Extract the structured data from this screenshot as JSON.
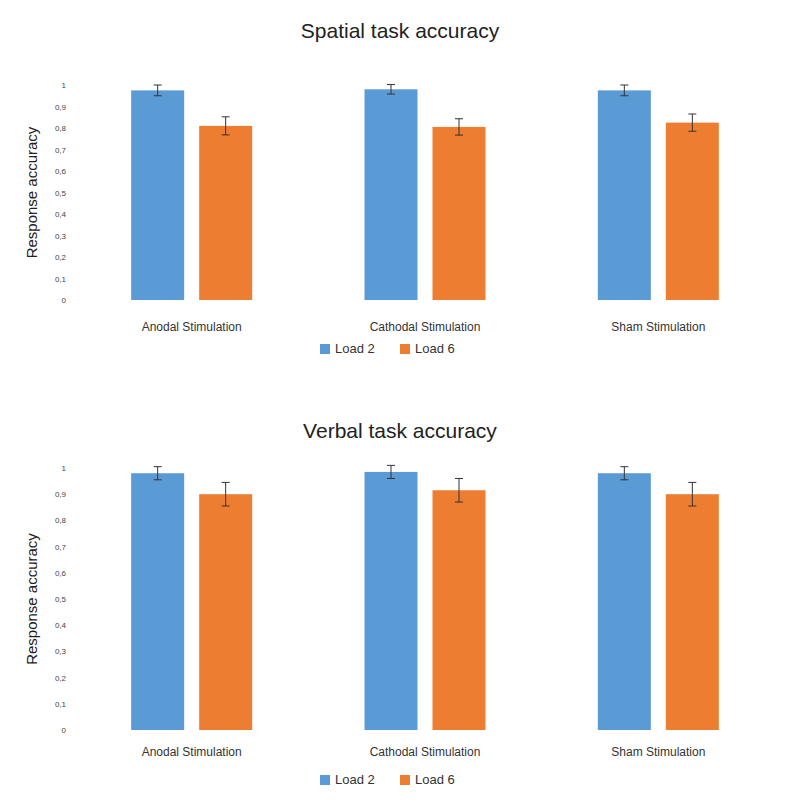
{
  "chart_data": [
    {
      "type": "bar",
      "title": "Spatial task accuracy",
      "y_label": "Response accuracy",
      "categories": [
        "Anodal Stimulation",
        "Cathodal Stimulation",
        "Sham Stimulation"
      ],
      "series": [
        {
          "name": "Load 2",
          "color": "#5b9bd5",
          "values": [
            0.975,
            0.98,
            0.975
          ],
          "errors": [
            0.025,
            0.022,
            0.025
          ]
        },
        {
          "name": "Load 6",
          "color": "#ed7d31",
          "values": [
            0.81,
            0.805,
            0.825
          ],
          "errors": [
            0.042,
            0.038,
            0.04
          ]
        }
      ],
      "ylim": [
        0,
        1
      ],
      "yticks": [
        0,
        {
          "value": 0.1,
          "label": "0,1"
        },
        {
          "value": 0.2,
          "label": "0,2"
        },
        {
          "value": 0.3,
          "label": "0,3"
        },
        {
          "value": 0.4,
          "label": "0,4"
        },
        {
          "value": 0.5,
          "label": "0,5"
        },
        {
          "value": 0.6,
          "label": "0,6"
        },
        {
          "value": 0.7,
          "label": "0,7"
        },
        {
          "value": 0.8,
          "label": "0,8"
        },
        {
          "value": 0.9,
          "label": "0,9"
        },
        1
      ],
      "grid": false,
      "legend": "bottom"
    },
    {
      "type": "bar",
      "title": "Verbal task accuracy",
      "y_label": "Response accuracy",
      "categories": [
        "Anodal Stimulation",
        "Cathodal Stimulation",
        "Sham Stimulation"
      ],
      "series": [
        {
          "name": "Load 2",
          "color": "#5b9bd5",
          "values": [
            0.98,
            0.985,
            0.98
          ],
          "errors": [
            0.025,
            0.025,
            0.025
          ]
        },
        {
          "name": "Load 6",
          "color": "#ed7d31",
          "values": [
            0.9,
            0.915,
            0.9
          ],
          "errors": [
            0.045,
            0.045,
            0.045
          ]
        }
      ],
      "ylim": [
        0,
        1
      ],
      "yticks": [
        0,
        {
          "value": 0.1,
          "label": "0,1"
        },
        {
          "value": 0.2,
          "label": "0,2"
        },
        {
          "value": 0.3,
          "label": "0,3"
        },
        {
          "value": 0.4,
          "label": "0,4"
        },
        {
          "value": 0.5,
          "label": "0,5"
        },
        {
          "value": 0.6,
          "label": "0,6"
        },
        {
          "value": 0.7,
          "label": "0,7"
        },
        {
          "value": 0.8,
          "label": "0,8"
        },
        {
          "value": 0.9,
          "label": "0,9"
        },
        1
      ],
      "grid": false,
      "legend": "bottom"
    }
  ]
}
